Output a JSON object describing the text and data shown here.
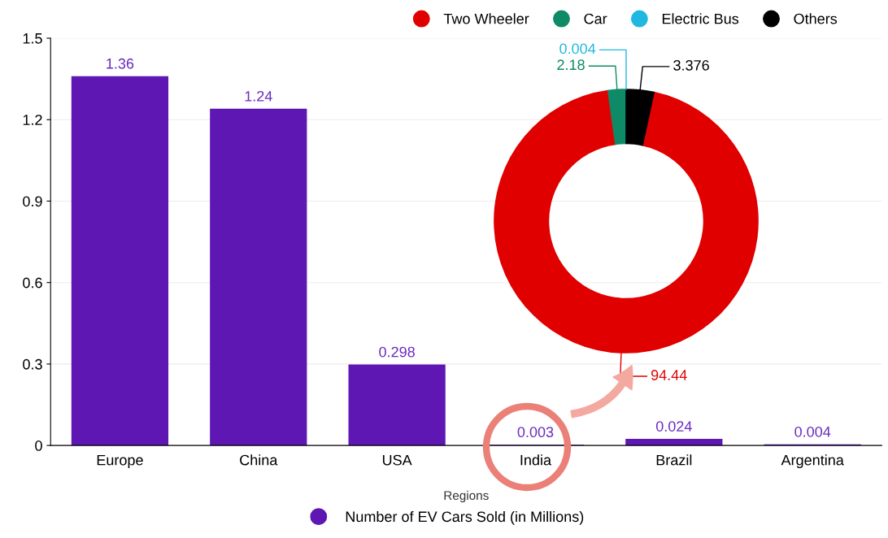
{
  "chart_data": [
    {
      "type": "bar",
      "xlabel": "Regions",
      "categories": [
        "Europe",
        "China",
        "USA",
        "India",
        "Brazil",
        "Argentina"
      ],
      "series": [
        {
          "name": "Number of EV Cars Sold (in Millions)",
          "color": "#5e17b3",
          "values": [
            1.36,
            1.24,
            0.298,
            0.003,
            0.024,
            0.004
          ]
        }
      ],
      "ylim": [
        0,
        1.5
      ],
      "yticks": [
        0,
        0.3,
        0.6,
        0.9,
        1.2,
        1.5
      ],
      "grid": "y",
      "legend": "bottom",
      "data_labels": true
    },
    {
      "type": "donut",
      "categories": [
        "Two Wheeler",
        "Car",
        "Electric Bus",
        "Others"
      ],
      "values": [
        94.44,
        2.18,
        0.004,
        3.376
      ],
      "colors": [
        "#e00000",
        "#0f8a66",
        "#20b8e0",
        "#000000"
      ],
      "legend": "top",
      "data_labels": true
    }
  ]
}
